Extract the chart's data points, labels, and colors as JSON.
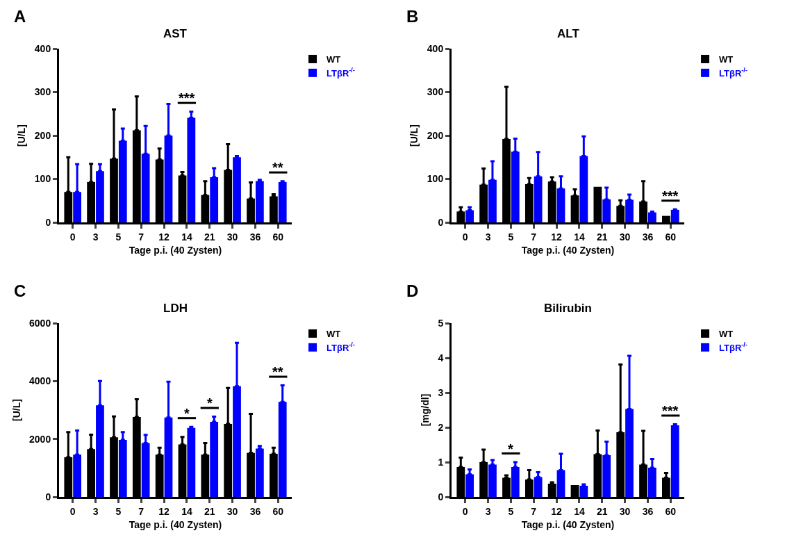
{
  "chart_data": [
    {
      "type": "bar",
      "title": "AST",
      "xlabel": "Tage p.i. (40 Zysten)",
      "ylabel": "[U/L]",
      "categories": [
        "0",
        "3",
        "5",
        "7",
        "12",
        "14",
        "21",
        "30",
        "36",
        "60"
      ],
      "ylim": [
        0,
        400
      ],
      "yticks": [
        0,
        100,
        200,
        300,
        400
      ],
      "legend": "top right",
      "series": [
        {
          "name": "WT",
          "color": "#000000",
          "values": [
            70,
            93,
            147,
            212,
            145,
            108,
            63,
            121,
            55,
            60
          ],
          "errors": [
            [
              70,
              150
            ],
            [
              93,
              135
            ],
            [
              147,
              260
            ],
            [
              212,
              290
            ],
            [
              145,
              170
            ],
            [
              108,
              116
            ],
            [
              63,
              95
            ],
            [
              121,
              180
            ],
            [
              55,
              92
            ],
            [
              60,
              65
            ]
          ]
        },
        {
          "name": "LTβR$^{-/-}$",
          "color": "#0000ff",
          "values": [
            70,
            118,
            188,
            158,
            200,
            241,
            104,
            150,
            95,
            93
          ],
          "errors": [
            [
              70,
              134
            ],
            [
              118,
              134
            ],
            [
              188,
              216
            ],
            [
              158,
              222
            ],
            [
              200,
              273
            ],
            [
              241,
              255
            ],
            [
              104,
              125
            ],
            [
              150,
              153
            ],
            [
              95,
              98
            ],
            [
              93,
              95
            ]
          ]
        }
      ],
      "annotations": [
        "A",
        {
          "text": "***",
          "x": "14",
          "y": 241
        },
        {
          "text": "**",
          "x": "60",
          "y": 93
        }
      ]
    },
    {
      "type": "bar",
      "title": "ALT",
      "xlabel": "Tage p.i. (40 Zysten)",
      "ylabel": "[U/L]",
      "categories": [
        "0",
        "3",
        "5",
        "7",
        "12",
        "14",
        "21",
        "30",
        "36",
        "60"
      ],
      "ylim": [
        0,
        400
      ],
      "yticks": [
        0,
        100,
        200,
        300,
        400
      ],
      "legend": "top right",
      "series": [
        {
          "name": "WT",
          "color": "#000000",
          "values": [
            25,
            87,
            192,
            88,
            94,
            62,
            82,
            38,
            48,
            15
          ],
          "errors": [
            [
              25,
              35
            ],
            [
              87,
              124
            ],
            [
              192,
              312
            ],
            [
              88,
              102
            ],
            [
              94,
              104
            ],
            [
              62,
              76
            ],
            null,
            [
              38,
              51
            ],
            [
              48,
              95
            ],
            null
          ]
        },
        {
          "name": "LTβR$^{-/-}$",
          "color": "#0000ff",
          "values": [
            28,
            98,
            163,
            106,
            78,
            153,
            53,
            52,
            23,
            29
          ],
          "errors": [
            [
              28,
              35
            ],
            [
              98,
              141
            ],
            [
              163,
              193
            ],
            [
              106,
              162
            ],
            [
              78,
              106
            ],
            [
              153,
              198
            ],
            [
              53,
              80
            ],
            [
              52,
              64
            ],
            [
              23,
              25
            ],
            [
              29,
              30
            ]
          ]
        }
      ],
      "annotations": [
        "B",
        {
          "text": "***",
          "x": "60",
          "y": 29
        }
      ]
    },
    {
      "type": "bar",
      "title": "LDH",
      "xlabel": "Tage p.i. (40 Zysten)",
      "ylabel": "[U/L]",
      "categories": [
        "0",
        "3",
        "5",
        "7",
        "12",
        "14",
        "21",
        "30",
        "36",
        "60"
      ],
      "ylim": [
        0,
        6000
      ],
      "yticks": [
        0,
        2000,
        4000,
        6000
      ],
      "legend": "top right",
      "series": [
        {
          "name": "WT",
          "color": "#000000",
          "values": [
            1370,
            1650,
            2060,
            2760,
            1460,
            1810,
            1460,
            2520,
            1520,
            1490
          ],
          "errors": [
            [
              1370,
              2240
            ],
            [
              1650,
              2150
            ],
            [
              2060,
              2780
            ],
            [
              2760,
              3370
            ],
            [
              1460,
              1700
            ],
            [
              1810,
              2070
            ],
            [
              1460,
              1860
            ],
            [
              2520,
              3760
            ],
            [
              1520,
              2870
            ],
            [
              1490,
              1700
            ]
          ]
        },
        {
          "name": "LTβR$^{-/-}$",
          "color": "#0000ff",
          "values": [
            1460,
            3160,
            1970,
            1860,
            2740,
            2380,
            2590,
            3820,
            1670,
            3280
          ],
          "errors": [
            [
              1460,
              2290
            ],
            [
              3160,
              4000
            ],
            [
              1970,
              2240
            ],
            [
              1860,
              2140
            ],
            [
              2740,
              3980
            ],
            [
              2380,
              2420
            ],
            [
              2590,
              2770
            ],
            [
              3820,
              5320
            ],
            [
              1670,
              1760
            ],
            [
              3280,
              3850
            ]
          ]
        }
      ],
      "annotations": [
        "C",
        {
          "text": "*",
          "x": "14",
          "y": 2380
        },
        {
          "text": "*",
          "x": "21",
          "y": 2590
        },
        {
          "text": "**",
          "x": "60",
          "y": 3280
        }
      ]
    },
    {
      "type": "bar",
      "title": "Bilirubin",
      "xlabel": "Tage p.i. (40 Zysten)",
      "ylabel": "[mg/dl]",
      "categories": [
        "0",
        "3",
        "5",
        "7",
        "12",
        "14",
        "21",
        "30",
        "36",
        "60"
      ],
      "ylim": [
        0,
        5
      ],
      "yticks": [
        0,
        1,
        2,
        3,
        4,
        5
      ],
      "legend": "top right",
      "series": [
        {
          "name": "WT",
          "color": "#000000",
          "values": [
            0.86,
            1.0,
            0.55,
            0.5,
            0.38,
            0.34,
            1.23,
            1.86,
            0.93,
            0.55
          ],
          "errors": [
            [
              0.86,
              1.13
            ],
            [
              1.0,
              1.36
            ],
            [
              0.55,
              0.62
            ],
            [
              0.5,
              0.77
            ],
            [
              0.38,
              0.42
            ],
            null,
            [
              1.23,
              1.91
            ],
            [
              1.86,
              3.81
            ],
            [
              0.93,
              1.9
            ],
            [
              0.55,
              0.69
            ]
          ]
        },
        {
          "name": "LTβR$^{-/-}$",
          "color": "#0000ff",
          "values": [
            0.65,
            0.93,
            0.86,
            0.57,
            0.77,
            0.32,
            1.2,
            2.53,
            0.84,
            2.06
          ],
          "errors": [
            [
              0.65,
              0.79
            ],
            [
              0.93,
              1.06
            ],
            [
              0.86,
              1.0
            ],
            [
              0.57,
              0.71
            ],
            [
              0.77,
              1.24
            ],
            [
              0.32,
              0.36
            ],
            [
              1.2,
              1.59
            ],
            [
              2.53,
              4.06
            ],
            [
              0.84,
              1.09
            ],
            [
              2.06,
              2.09
            ]
          ]
        }
      ],
      "annotations": [
        "D",
        {
          "text": "*",
          "x": "5",
          "y": 0.86
        },
        {
          "text": "***",
          "x": "60",
          "y": 2.06
        }
      ]
    }
  ]
}
